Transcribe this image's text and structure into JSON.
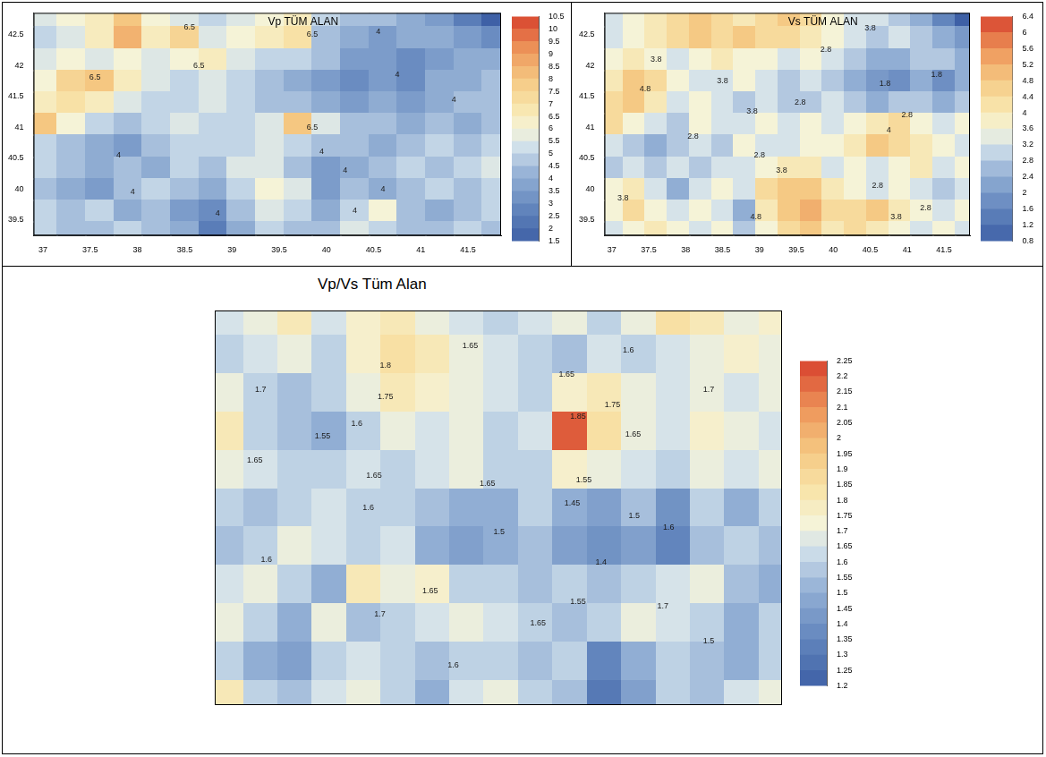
{
  "chart_data": [
    {
      "type": "contour",
      "title": "Vp TÜM ALAN",
      "grid": false,
      "xlim": [
        36.9,
        41.85
      ],
      "ylim": [
        39.25,
        42.85
      ],
      "xticks": [
        37,
        37.5,
        38,
        38.5,
        39,
        39.5,
        40,
        40.5,
        41,
        41.5
      ],
      "yticks": [
        39.5,
        40,
        40.5,
        41,
        41.5,
        42,
        42.5
      ],
      "x": [
        37.0,
        37.3,
        37.6,
        37.9,
        38.2,
        38.5,
        38.8,
        39.1,
        39.4,
        39.7,
        40.0,
        40.3,
        40.6,
        40.9,
        41.2,
        41.5,
        41.8
      ],
      "y": [
        42.8,
        42.45,
        42.1,
        41.75,
        41.4,
        41.05,
        40.7,
        40.35,
        40.0,
        39.65,
        39.3
      ],
      "cells": [
        [
          5.5,
          6.0,
          6.5,
          8.0,
          6.0,
          5.5,
          5.0,
          5.5,
          6.0,
          6.5,
          5.0,
          4.5,
          4.5,
          4.0,
          3.5,
          2.5,
          1.5
        ],
        [
          5.0,
          5.5,
          6.5,
          8.5,
          6.5,
          7.5,
          5.5,
          6.0,
          6.5,
          7.0,
          4.5,
          4.0,
          3.5,
          4.0,
          4.0,
          3.5,
          3.0
        ],
        [
          5.5,
          6.0,
          5.5,
          6.0,
          5.5,
          6.0,
          6.5,
          5.5,
          5.0,
          5.0,
          4.5,
          3.5,
          3.5,
          3.0,
          3.5,
          4.0,
          4.0
        ],
        [
          6.0,
          7.5,
          8.0,
          6.5,
          5.5,
          5.0,
          5.5,
          5.0,
          4.5,
          4.0,
          3.5,
          3.0,
          3.5,
          3.0,
          4.0,
          4.0,
          4.5
        ],
        [
          6.5,
          7.0,
          6.5,
          5.5,
          5.0,
          5.0,
          5.5,
          5.0,
          4.5,
          4.5,
          4.0,
          3.5,
          4.0,
          3.5,
          4.0,
          4.5,
          4.5
        ],
        [
          8.0,
          6.0,
          5.0,
          4.5,
          5.0,
          5.5,
          5.0,
          5.0,
          5.5,
          8.0,
          5.5,
          4.5,
          4.5,
          4.0,
          4.5,
          4.0,
          4.5
        ],
        [
          5.0,
          4.5,
          4.0,
          3.5,
          4.5,
          5.0,
          5.0,
          5.0,
          5.5,
          5.0,
          4.5,
          4.5,
          4.0,
          4.5,
          5.0,
          4.5,
          5.0
        ],
        [
          5.0,
          4.5,
          4.0,
          4.5,
          4.0,
          5.0,
          4.5,
          5.5,
          5.5,
          4.5,
          3.5,
          4.0,
          4.5,
          5.0,
          4.5,
          5.0,
          5.5
        ],
        [
          4.5,
          4.0,
          3.5,
          4.5,
          5.0,
          4.5,
          4.0,
          5.0,
          6.0,
          5.5,
          3.5,
          4.5,
          4.0,
          4.5,
          5.0,
          4.5,
          5.0
        ],
        [
          5.0,
          4.5,
          5.0,
          4.0,
          4.5,
          3.5,
          3.0,
          4.5,
          5.5,
          5.0,
          4.0,
          5.0,
          6.0,
          4.5,
          4.0,
          4.5,
          5.0
        ],
        [
          5.0,
          4.5,
          4.5,
          5.0,
          4.5,
          4.0,
          2.5,
          4.0,
          5.0,
          4.5,
          4.5,
          5.5,
          5.0,
          4.5,
          4.5,
          5.0,
          4.5
        ]
      ],
      "colorbar": {
        "range": [
          1.5,
          10.5
        ],
        "ticks": [
          1.5,
          2,
          2.5,
          3,
          3.5,
          4,
          4.5,
          5,
          5.5,
          6,
          6.5,
          7,
          7.5,
          8,
          8.5,
          9,
          9.5,
          10,
          10.5
        ]
      },
      "contour_labels": [
        {
          "x": 38.55,
          "y": 42.62,
          "value": 6.5
        },
        {
          "x": 38.65,
          "y": 42.0,
          "value": 6.5
        },
        {
          "x": 37.55,
          "y": 41.8,
          "value": 6.5
        },
        {
          "x": 39.85,
          "y": 42.5,
          "value": 6.5
        },
        {
          "x": 39.85,
          "y": 41.0,
          "value": 6.5
        },
        {
          "x": 40.55,
          "y": 42.55,
          "value": 4
        },
        {
          "x": 40.75,
          "y": 41.85,
          "value": 4
        },
        {
          "x": 41.35,
          "y": 41.45,
          "value": 4
        },
        {
          "x": 37.8,
          "y": 40.55,
          "value": 4
        },
        {
          "x": 37.95,
          "y": 39.95,
          "value": 4
        },
        {
          "x": 38.85,
          "y": 39.6,
          "value": 4
        },
        {
          "x": 40.3,
          "y": 39.65,
          "value": 4
        },
        {
          "x": 40.6,
          "y": 40.0,
          "value": 4
        },
        {
          "x": 39.95,
          "y": 40.6,
          "value": 4
        },
        {
          "x": 40.2,
          "y": 40.3,
          "value": 4
        }
      ]
    },
    {
      "type": "contour",
      "title": "Vs TÜM ALAN",
      "grid": false,
      "xlim": [
        36.9,
        41.85
      ],
      "ylim": [
        39.25,
        42.85
      ],
      "xticks": [
        37,
        37.5,
        38,
        38.5,
        39,
        39.5,
        40,
        40.5,
        41,
        41.5
      ],
      "yticks": [
        39.5,
        40,
        40.5,
        41,
        41.5,
        42,
        42.5
      ],
      "x": [
        37.0,
        37.3,
        37.6,
        37.9,
        38.2,
        38.5,
        38.8,
        39.1,
        39.4,
        39.7,
        40.0,
        40.3,
        40.6,
        40.9,
        41.2,
        41.5,
        41.8
      ],
      "y": [
        42.8,
        42.45,
        42.1,
        41.75,
        41.4,
        41.05,
        40.7,
        40.35,
        40.0,
        39.65,
        39.3
      ],
      "cells": [
        [
          3.2,
          3.6,
          4.0,
          4.4,
          4.8,
          4.4,
          4.0,
          4.4,
          4.8,
          4.4,
          3.6,
          3.2,
          3.2,
          2.8,
          2.4,
          1.6,
          0.8
        ],
        [
          3.2,
          3.6,
          4.0,
          4.4,
          4.8,
          4.4,
          4.8,
          4.4,
          4.4,
          4.0,
          3.6,
          3.2,
          2.8,
          3.2,
          2.8,
          2.4,
          2.0
        ],
        [
          3.6,
          4.0,
          3.6,
          3.2,
          3.6,
          4.0,
          3.6,
          3.6,
          3.2,
          3.6,
          3.2,
          2.8,
          2.4,
          2.4,
          2.8,
          2.8,
          2.4
        ],
        [
          4.0,
          4.8,
          4.4,
          3.6,
          3.2,
          3.2,
          3.6,
          3.2,
          2.8,
          3.2,
          2.8,
          2.4,
          2.0,
          1.8,
          2.4,
          1.8,
          2.4
        ],
        [
          4.4,
          4.8,
          4.0,
          3.2,
          3.6,
          3.2,
          2.8,
          3.2,
          2.8,
          2.8,
          3.2,
          2.8,
          2.4,
          2.8,
          2.8,
          2.4,
          2.8
        ],
        [
          4.4,
          3.6,
          3.2,
          2.8,
          3.6,
          3.2,
          3.2,
          3.6,
          3.2,
          3.6,
          3.2,
          3.6,
          4.0,
          4.4,
          3.6,
          3.2,
          3.6
        ],
        [
          3.2,
          2.8,
          2.4,
          2.8,
          3.2,
          2.8,
          3.6,
          3.2,
          3.2,
          3.6,
          3.6,
          4.0,
          4.8,
          4.4,
          4.0,
          3.6,
          3.2
        ],
        [
          2.8,
          3.2,
          2.8,
          3.2,
          2.8,
          3.2,
          3.2,
          3.6,
          4.0,
          4.0,
          3.2,
          3.6,
          3.2,
          3.6,
          4.0,
          3.2,
          3.6
        ],
        [
          3.6,
          4.0,
          3.2,
          2.4,
          3.2,
          3.6,
          3.2,
          4.4,
          4.8,
          4.8,
          4.0,
          3.6,
          3.2,
          3.6,
          3.2,
          2.8,
          3.2
        ],
        [
          3.6,
          4.4,
          3.6,
          3.2,
          3.6,
          3.2,
          2.4,
          4.0,
          4.8,
          5.2,
          4.4,
          4.4,
          4.8,
          4.0,
          3.6,
          3.2,
          3.6
        ],
        [
          3.2,
          3.6,
          4.0,
          3.6,
          3.2,
          3.6,
          2.8,
          3.6,
          4.4,
          4.8,
          4.0,
          4.4,
          4.0,
          3.6,
          3.2,
          3.6,
          3.2
        ]
      ],
      "colorbar": {
        "range": [
          0.8,
          6.4
        ],
        "ticks": [
          0.8,
          1.2,
          1.6,
          2,
          2.4,
          2.8,
          3.2,
          3.6,
          4,
          4.4,
          4.8,
          5.2,
          5.6,
          6,
          6.4
        ]
      },
      "contour_labels": [
        {
          "x": 37.6,
          "y": 42.1,
          "value": 3.8
        },
        {
          "x": 38.5,
          "y": 41.75,
          "value": 3.8
        },
        {
          "x": 37.45,
          "y": 41.62,
          "value": 4.8
        },
        {
          "x": 39.55,
          "y": 41.4,
          "value": 2.8
        },
        {
          "x": 39.9,
          "y": 42.25,
          "value": 2.8
        },
        {
          "x": 40.5,
          "y": 42.6,
          "value": 3.8
        },
        {
          "x": 41.4,
          "y": 41.85,
          "value": 1.8
        },
        {
          "x": 40.7,
          "y": 41.7,
          "value": 1.8
        },
        {
          "x": 41.0,
          "y": 41.2,
          "value": 2.8
        },
        {
          "x": 38.9,
          "y": 41.25,
          "value": 3.8
        },
        {
          "x": 38.1,
          "y": 40.85,
          "value": 2.8
        },
        {
          "x": 39.0,
          "y": 40.55,
          "value": 2.8
        },
        {
          "x": 39.3,
          "y": 40.3,
          "value": 3.8
        },
        {
          "x": 37.15,
          "y": 39.85,
          "value": 3.8
        },
        {
          "x": 38.95,
          "y": 39.55,
          "value": 4.8
        },
        {
          "x": 40.6,
          "y": 40.05,
          "value": 2.8
        },
        {
          "x": 40.85,
          "y": 39.55,
          "value": 3.8
        },
        {
          "x": 41.25,
          "y": 39.7,
          "value": 2.8
        },
        {
          "x": 40.75,
          "y": 40.95,
          "value": 4
        }
      ]
    },
    {
      "type": "contour",
      "title": "Vp/Vs Tüm Alan",
      "grid": false,
      "tick_labels": false,
      "xlim": [
        36.9,
        41.85
      ],
      "ylim": [
        39.25,
        42.85
      ],
      "x": [
        37.0,
        37.3,
        37.6,
        37.9,
        38.2,
        38.5,
        38.8,
        39.1,
        39.4,
        39.7,
        40.0,
        40.3,
        40.6,
        40.9,
        41.2,
        41.5,
        41.8
      ],
      "y": [
        42.8,
        42.45,
        42.1,
        41.75,
        41.4,
        41.05,
        40.7,
        40.35,
        40.0,
        39.65,
        39.3
      ],
      "cells": [
        [
          1.65,
          1.7,
          1.8,
          1.65,
          1.75,
          1.8,
          1.7,
          1.65,
          1.6,
          1.65,
          1.7,
          1.6,
          1.7,
          1.85,
          1.8,
          1.7,
          1.75
        ],
        [
          1.6,
          1.65,
          1.7,
          1.6,
          1.75,
          1.85,
          1.8,
          1.7,
          1.65,
          1.6,
          1.55,
          1.65,
          1.6,
          1.65,
          1.7,
          1.75,
          1.7
        ],
        [
          1.7,
          1.6,
          1.55,
          1.6,
          1.7,
          1.8,
          1.75,
          1.7,
          1.65,
          1.6,
          1.75,
          1.8,
          1.7,
          1.65,
          1.7,
          1.65,
          1.7
        ],
        [
          1.8,
          1.6,
          1.55,
          1.5,
          1.6,
          1.7,
          1.65,
          1.7,
          1.6,
          1.65,
          2.2,
          1.85,
          1.7,
          1.65,
          1.75,
          1.7,
          1.65
        ],
        [
          1.7,
          1.65,
          1.6,
          1.6,
          1.65,
          1.6,
          1.65,
          1.7,
          1.6,
          1.6,
          1.75,
          1.7,
          1.65,
          1.6,
          1.7,
          1.65,
          1.7
        ],
        [
          1.6,
          1.55,
          1.6,
          1.65,
          1.6,
          1.6,
          1.55,
          1.5,
          1.5,
          1.6,
          1.5,
          1.45,
          1.55,
          1.4,
          1.6,
          1.5,
          1.6
        ],
        [
          1.55,
          1.6,
          1.7,
          1.65,
          1.6,
          1.65,
          1.5,
          1.45,
          1.5,
          1.55,
          1.45,
          1.4,
          1.45,
          1.35,
          1.55,
          1.6,
          1.55
        ],
        [
          1.65,
          1.7,
          1.6,
          1.5,
          1.8,
          1.7,
          1.75,
          1.6,
          1.6,
          1.55,
          1.6,
          1.55,
          1.6,
          1.65,
          1.7,
          1.55,
          1.5
        ],
        [
          1.7,
          1.6,
          1.5,
          1.7,
          1.55,
          1.6,
          1.65,
          1.7,
          1.65,
          1.6,
          1.55,
          1.6,
          1.7,
          1.65,
          1.6,
          1.5,
          1.6
        ],
        [
          1.6,
          1.5,
          1.45,
          1.6,
          1.65,
          1.6,
          1.55,
          1.6,
          1.6,
          1.55,
          1.6,
          1.35,
          1.5,
          1.6,
          1.55,
          1.5,
          1.6
        ],
        [
          1.8,
          1.6,
          1.55,
          1.65,
          1.7,
          1.6,
          1.5,
          1.65,
          1.7,
          1.6,
          1.55,
          1.3,
          1.45,
          1.6,
          1.55,
          1.65,
          1.7
        ]
      ],
      "colorbar": {
        "range": [
          1.2,
          2.25
        ],
        "ticks": [
          1.2,
          1.25,
          1.3,
          1.35,
          1.4,
          1.45,
          1.5,
          1.55,
          1.6,
          1.65,
          1.7,
          1.75,
          1.8,
          1.85,
          1.9,
          1.95,
          2,
          2.05,
          2.1,
          2.15,
          2.2,
          2.25
        ]
      },
      "contour_labels": [
        {
          "x": 37.3,
          "y": 42.13,
          "value": 1.7
        },
        {
          "x": 38.39,
          "y": 42.35,
          "value": 1.8
        },
        {
          "x": 38.39,
          "y": 42.06,
          "value": 1.75
        },
        {
          "x": 39.13,
          "y": 42.53,
          "value": 1.65
        },
        {
          "x": 40.51,
          "y": 42.49,
          "value": 1.6
        },
        {
          "x": 39.97,
          "y": 42.27,
          "value": 1.65
        },
        {
          "x": 40.07,
          "y": 41.88,
          "value": 1.85
        },
        {
          "x": 40.37,
          "y": 41.99,
          "value": 1.75
        },
        {
          "x": 40.55,
          "y": 41.72,
          "value": 1.65
        },
        {
          "x": 41.21,
          "y": 42.13,
          "value": 1.7
        },
        {
          "x": 37.84,
          "y": 41.7,
          "value": 1.55
        },
        {
          "x": 38.14,
          "y": 41.82,
          "value": 1.6
        },
        {
          "x": 37.25,
          "y": 41.48,
          "value": 1.65
        },
        {
          "x": 38.29,
          "y": 41.34,
          "value": 1.65
        },
        {
          "x": 38.24,
          "y": 41.05,
          "value": 1.6
        },
        {
          "x": 39.28,
          "y": 41.27,
          "value": 1.65
        },
        {
          "x": 39.38,
          "y": 40.83,
          "value": 1.5
        },
        {
          "x": 40.02,
          "y": 41.09,
          "value": 1.45
        },
        {
          "x": 40.12,
          "y": 41.3,
          "value": 1.55
        },
        {
          "x": 40.56,
          "y": 40.98,
          "value": 1.5
        },
        {
          "x": 40.27,
          "y": 40.55,
          "value": 1.4
        },
        {
          "x": 40.86,
          "y": 40.87,
          "value": 1.6
        },
        {
          "x": 40.07,
          "y": 40.19,
          "value": 1.55
        },
        {
          "x": 40.81,
          "y": 40.15,
          "value": 1.7
        },
        {
          "x": 41.21,
          "y": 39.83,
          "value": 1.5
        },
        {
          "x": 37.35,
          "y": 40.58,
          "value": 1.6
        },
        {
          "x": 38.34,
          "y": 40.08,
          "value": 1.7
        },
        {
          "x": 38.78,
          "y": 40.29,
          "value": 1.65
        },
        {
          "x": 38.98,
          "y": 39.61,
          "value": 1.6
        },
        {
          "x": 39.72,
          "y": 40.0,
          "value": 1.65
        }
      ]
    }
  ]
}
